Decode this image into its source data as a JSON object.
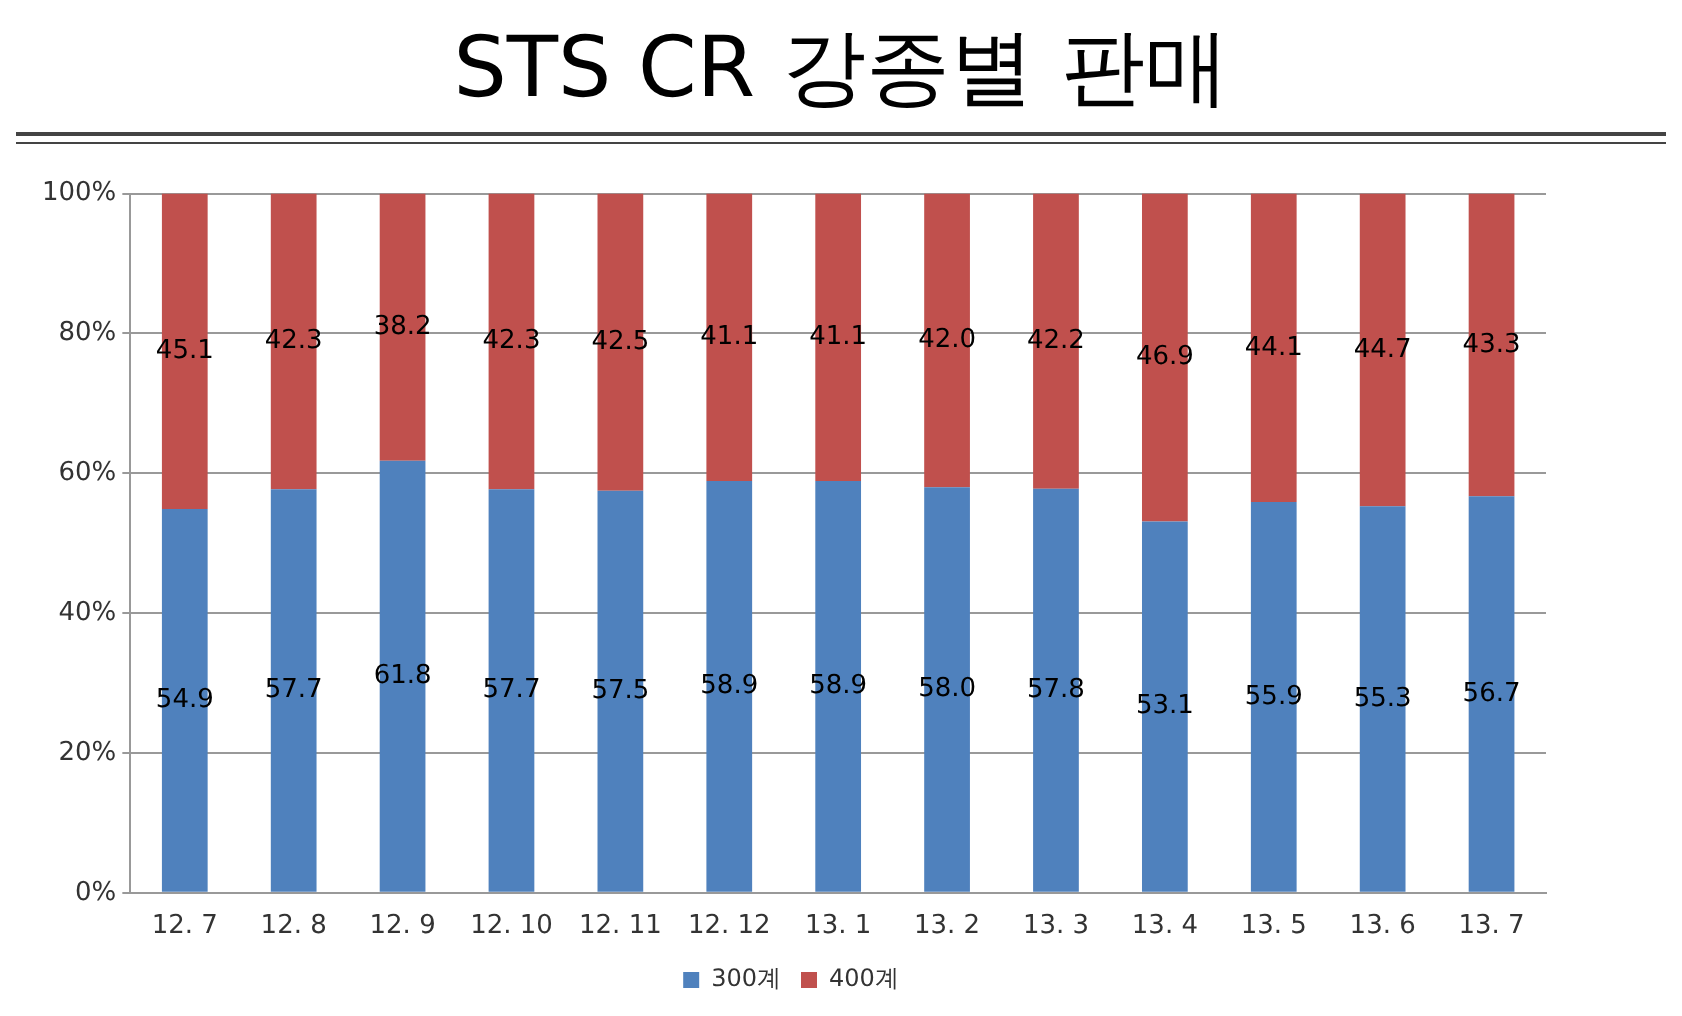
{
  "chart_data": {
    "type": "bar",
    "title": "STS CR 강종별 판매",
    "stacked": true,
    "categories": [
      "12. 7",
      "12. 8",
      "12. 9",
      "12. 10",
      "12. 11",
      "12. 12",
      "13. 1",
      "13. 2",
      "13. 3",
      "13. 4",
      "13. 5",
      "13. 6",
      "13. 7"
    ],
    "series": [
      {
        "name": "300계",
        "color": "#4f81bd",
        "values": [
          54.9,
          57.7,
          61.8,
          57.7,
          57.5,
          58.9,
          58.9,
          58.0,
          57.8,
          53.1,
          55.9,
          55.3,
          56.7
        ],
        "value_labels": [
          "54.9",
          "57.7",
          "61.8",
          "57.7",
          "57.5",
          "58.9",
          "58.9",
          "58.0",
          "57.8",
          "53.1",
          "55.9",
          "55.3",
          "56.7"
        ]
      },
      {
        "name": "400계",
        "color": "#c0504d",
        "values": [
          45.1,
          42.3,
          38.2,
          42.3,
          42.5,
          41.1,
          41.1,
          42.0,
          42.2,
          46.9,
          44.1,
          44.7,
          43.3
        ],
        "value_labels": [
          "45.1",
          "42.3",
          "38.2",
          "42.3",
          "42.5",
          "41.1",
          "41.1",
          "42.0",
          "42.2",
          "46.9",
          "44.1",
          "44.7",
          "43.3"
        ]
      }
    ],
    "ylim": [
      0,
      100
    ],
    "yticks": [
      {
        "value": 0,
        "label": "0%"
      },
      {
        "value": 20,
        "label": "20%"
      },
      {
        "value": 40,
        "label": "40%"
      },
      {
        "value": 60,
        "label": "60%"
      },
      {
        "value": 80,
        "label": "80%"
      },
      {
        "value": 100,
        "label": "100%"
      }
    ],
    "grid": "y",
    "legend": "bottom"
  }
}
